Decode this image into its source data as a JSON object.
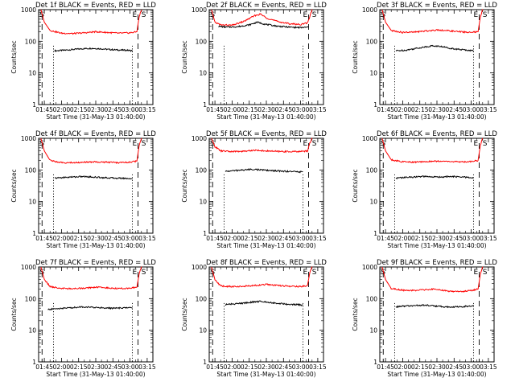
{
  "chart_data": [
    {
      "type": "line",
      "title": "Det 1f BLACK = Events, RED = LLD",
      "xlabel": "Start Time (31-May-13 01:40:00)",
      "ylabel": "Counts/sec",
      "x_ticks": [
        "01:45",
        "02:00",
        "02:15",
        "02:30",
        "02:45",
        "03:00",
        "03:15"
      ],
      "y_ticks": [
        "1",
        "10",
        "100",
        "1000"
      ],
      "yscale": "log",
      "ylim": [
        1,
        1000
      ],
      "xlim": [
        "01:40",
        "03:20"
      ],
      "series": [
        {
          "color": "#000000",
          "x": [
            "01:54",
            "02:02",
            "02:10",
            "02:18",
            "02:26",
            "02:34",
            "02:42",
            "02:50",
            "02:58",
            "03:02"
          ],
          "values": [
            50,
            52,
            55,
            58,
            60,
            58,
            55,
            53,
            52,
            50
          ]
        },
        {
          "color": "#ff0000",
          "x": [
            "01:42",
            "01:45",
            "01:50",
            "02:00",
            "02:10",
            "02:20",
            "02:30",
            "02:40",
            "02:50",
            "03:00",
            "03:06",
            "03:08",
            "03:10"
          ],
          "values": [
            1000,
            400,
            220,
            180,
            175,
            185,
            200,
            190,
            180,
            185,
            200,
            600,
            1000
          ]
        }
      ],
      "dashed_x": [
        "01:43",
        "03:07"
      ],
      "dotted_x": [
        "01:53",
        "03:02"
      ],
      "markers": [
        {
          "text": "S",
          "x": "01:41"
        },
        {
          "text": "E",
          "x": "03:02"
        },
        {
          "text": "S",
          "x": "03:10"
        }
      ]
    },
    {
      "type": "line",
      "title": "Det 2f BLACK = Events, RED = LLD",
      "xlabel": "Start Time (31-May-13 01:40:00)",
      "ylabel": "Counts/sec",
      "x_ticks": [
        "01:45",
        "02:00",
        "02:15",
        "02:30",
        "02:45",
        "03:00",
        "03:15"
      ],
      "y_ticks": [
        "1",
        "10",
        "100",
        "1000"
      ],
      "yscale": "log",
      "ylim": [
        1,
        1000
      ],
      "xlim": [
        "01:40",
        "03:20"
      ],
      "series": [
        {
          "color": "#000000",
          "x": [
            "01:48",
            "01:55",
            "02:05",
            "02:15",
            "02:22",
            "02:30",
            "02:40",
            "02:50",
            "03:00",
            "03:07"
          ],
          "values": [
            300,
            280,
            290,
            330,
            400,
            340,
            300,
            280,
            270,
            280
          ]
        },
        {
          "color": "#ff0000",
          "x": [
            "01:42",
            "01:45",
            "01:50",
            "02:00",
            "02:10",
            "02:20",
            "02:25",
            "02:30",
            "02:40",
            "02:50",
            "03:00",
            "03:06",
            "03:08",
            "03:10"
          ],
          "values": [
            1000,
            400,
            330,
            320,
            420,
            650,
            720,
            550,
            420,
            360,
            340,
            380,
            600,
            1000
          ]
        }
      ],
      "dashed_x": [
        "01:43",
        "03:07"
      ],
      "dotted_x": [
        "01:53",
        "03:02"
      ],
      "markers": [
        {
          "text": "S",
          "x": "01:41"
        },
        {
          "text": "E",
          "x": "03:02"
        },
        {
          "text": "S",
          "x": "03:10"
        }
      ]
    },
    {
      "type": "line",
      "title": "Det 3f BLACK = Events, RED = LLD",
      "xlabel": "Start Time (31-May-13 01:40:00)",
      "ylabel": "Counts/sec",
      "x_ticks": [
        "01:45",
        "02:00",
        "02:15",
        "02:30",
        "02:45",
        "03:00",
        "03:15"
      ],
      "y_ticks": [
        "1",
        "10",
        "100",
        "1000"
      ],
      "yscale": "log",
      "ylim": [
        1,
        1000
      ],
      "xlim": [
        "01:40",
        "03:20"
      ],
      "series": [
        {
          "color": "#000000",
          "x": [
            "01:54",
            "02:02",
            "02:10",
            "02:18",
            "02:26",
            "02:34",
            "02:42",
            "02:50",
            "02:58",
            "03:02"
          ],
          "values": [
            50,
            52,
            58,
            65,
            72,
            68,
            60,
            55,
            52,
            50
          ]
        },
        {
          "color": "#ff0000",
          "x": [
            "01:42",
            "01:45",
            "01:50",
            "02:00",
            "02:10",
            "02:20",
            "02:30",
            "02:40",
            "02:50",
            "03:00",
            "03:06",
            "03:08",
            "03:10"
          ],
          "values": [
            1000,
            400,
            220,
            190,
            195,
            210,
            230,
            215,
            200,
            190,
            200,
            600,
            1000
          ]
        }
      ],
      "dashed_x": [
        "01:43",
        "03:07"
      ],
      "dotted_x": [
        "01:53",
        "03:02"
      ],
      "markers": [
        {
          "text": "S",
          "x": "01:41"
        },
        {
          "text": "E",
          "x": "03:02"
        },
        {
          "text": "S",
          "x": "03:10"
        }
      ]
    },
    {
      "type": "line",
      "title": "Det 4f BLACK = Events, RED = LLD",
      "xlabel": "Start Time (31-May-13 01:40:00)",
      "ylabel": "Counts/sec",
      "x_ticks": [
        "01:45",
        "02:00",
        "02:15",
        "02:30",
        "02:45",
        "03:00",
        "03:15"
      ],
      "y_ticks": [
        "1",
        "10",
        "100",
        "1000"
      ],
      "yscale": "log",
      "ylim": [
        1,
        1000
      ],
      "xlim": [
        "01:40",
        "03:20"
      ],
      "series": [
        {
          "color": "#000000",
          "x": [
            "01:54",
            "02:02",
            "02:10",
            "02:18",
            "02:26",
            "02:34",
            "02:42",
            "02:50",
            "02:58",
            "03:02"
          ],
          "values": [
            55,
            58,
            60,
            62,
            60,
            58,
            56,
            55,
            54,
            52
          ]
        },
        {
          "color": "#ff0000",
          "x": [
            "01:42",
            "01:45",
            "01:50",
            "02:00",
            "02:10",
            "02:20",
            "02:30",
            "02:40",
            "02:50",
            "03:00",
            "03:06",
            "03:08",
            "03:10"
          ],
          "values": [
            1000,
            400,
            200,
            170,
            170,
            175,
            180,
            175,
            170,
            175,
            190,
            600,
            1000
          ]
        }
      ],
      "dashed_x": [
        "01:43",
        "03:07"
      ],
      "dotted_x": [
        "01:53",
        "03:02"
      ],
      "markers": [
        {
          "text": "S",
          "x": "01:41"
        },
        {
          "text": "E",
          "x": "03:02"
        },
        {
          "text": "S",
          "x": "03:10"
        }
      ]
    },
    {
      "type": "line",
      "title": "Det 5f BLACK = Events, RED = LLD",
      "xlabel": "Start Time (31-May-13 01:40:00)",
      "ylabel": "Counts/sec",
      "x_ticks": [
        "01:45",
        "02:00",
        "02:15",
        "02:30",
        "02:45",
        "03:00",
        "03:15"
      ],
      "y_ticks": [
        "1",
        "10",
        "100",
        "1000"
      ],
      "yscale": "log",
      "ylim": [
        1,
        1000
      ],
      "xlim": [
        "01:40",
        "03:20"
      ],
      "series": [
        {
          "color": "#000000",
          "x": [
            "01:54",
            "02:02",
            "02:10",
            "02:18",
            "02:26",
            "02:34",
            "02:42",
            "02:50",
            "02:58",
            "03:02"
          ],
          "values": [
            90,
            95,
            100,
            105,
            100,
            95,
            92,
            90,
            88,
            85
          ]
        },
        {
          "color": "#ff0000",
          "x": [
            "01:42",
            "01:45",
            "01:50",
            "02:00",
            "02:10",
            "02:20",
            "02:30",
            "02:40",
            "02:50",
            "03:00",
            "03:06",
            "03:08",
            "03:10"
          ],
          "values": [
            1000,
            550,
            400,
            380,
            390,
            420,
            400,
            385,
            380,
            385,
            400,
            700,
            1000
          ]
        }
      ],
      "dashed_x": [
        "01:43",
        "03:07"
      ],
      "dotted_x": [
        "01:53",
        "03:02"
      ],
      "markers": [
        {
          "text": "S",
          "x": "01:41"
        },
        {
          "text": "E",
          "x": "03:02"
        },
        {
          "text": "S",
          "x": "03:10"
        }
      ]
    },
    {
      "type": "line",
      "title": "Det 6f BLACK = Events, RED = LLD",
      "xlabel": "Start Time (31-May-13 01:40:00)",
      "ylabel": "Counts/sec",
      "x_ticks": [
        "01:45",
        "02:00",
        "02:15",
        "02:30",
        "02:45",
        "03:00",
        "03:15"
      ],
      "y_ticks": [
        "1",
        "10",
        "100",
        "1000"
      ],
      "yscale": "log",
      "ylim": [
        1,
        1000
      ],
      "xlim": [
        "01:40",
        "03:20"
      ],
      "series": [
        {
          "color": "#000000",
          "x": [
            "01:54",
            "02:02",
            "02:10",
            "02:18",
            "02:26",
            "02:34",
            "02:42",
            "02:50",
            "02:58",
            "03:02"
          ],
          "values": [
            55,
            58,
            60,
            62,
            60,
            60,
            62,
            60,
            58,
            55
          ]
        },
        {
          "color": "#ff0000",
          "x": [
            "01:42",
            "01:45",
            "01:50",
            "02:00",
            "02:10",
            "02:20",
            "02:30",
            "02:40",
            "02:50",
            "03:00",
            "03:06",
            "03:08",
            "03:10"
          ],
          "values": [
            1000,
            400,
            210,
            180,
            175,
            185,
            190,
            185,
            180,
            185,
            200,
            600,
            1000
          ]
        }
      ],
      "dashed_x": [
        "01:43",
        "03:07"
      ],
      "dotted_x": [
        "01:53",
        "03:02"
      ],
      "markers": [
        {
          "text": "S",
          "x": "01:41"
        },
        {
          "text": "E",
          "x": "03:02"
        },
        {
          "text": "S",
          "x": "03:10"
        }
      ]
    },
    {
      "type": "line",
      "title": "Det 7f BLACK = Events, RED = LLD",
      "xlabel": "Start Time (31-May-13 01:40:00)",
      "ylabel": "Counts/sec",
      "x_ticks": [
        "01:45",
        "02:00",
        "02:15",
        "02:30",
        "02:45",
        "03:00",
        "03:15"
      ],
      "y_ticks": [
        "1",
        "10",
        "100",
        "1000"
      ],
      "yscale": "log",
      "ylim": [
        1,
        1000
      ],
      "xlim": [
        "01:40",
        "03:20"
      ],
      "series": [
        {
          "color": "#000000",
          "x": [
            "01:48",
            "01:55",
            "02:02",
            "02:10",
            "02:18",
            "02:26",
            "02:34",
            "02:42",
            "02:50",
            "02:58",
            "03:02"
          ],
          "values": [
            45,
            48,
            50,
            52,
            55,
            53,
            52,
            50,
            50,
            52,
            50
          ]
        },
        {
          "color": "#ff0000",
          "x": [
            "01:42",
            "01:45",
            "01:50",
            "02:00",
            "02:10",
            "02:20",
            "02:30",
            "02:40",
            "02:50",
            "03:00",
            "03:06",
            "03:08",
            "03:10"
          ],
          "values": [
            1000,
            400,
            240,
            210,
            205,
            215,
            230,
            220,
            210,
            215,
            230,
            600,
            1000
          ]
        }
      ],
      "dashed_x": [
        "01:43",
        "03:07"
      ],
      "dotted_x": [
        "01:53",
        "03:02"
      ],
      "markers": [
        {
          "text": "S",
          "x": "01:41"
        },
        {
          "text": "E",
          "x": "03:02"
        },
        {
          "text": "S",
          "x": "03:10"
        }
      ]
    },
    {
      "type": "line",
      "title": "Det 8f BLACK = Events, RED = LLD",
      "xlabel": "Start Time (31-May-13 01:40:00)",
      "ylabel": "Counts/sec",
      "x_ticks": [
        "01:45",
        "02:00",
        "02:15",
        "02:30",
        "02:45",
        "03:00",
        "03:15"
      ],
      "y_ticks": [
        "1",
        "10",
        "100",
        "1000"
      ],
      "yscale": "log",
      "ylim": [
        1,
        1000
      ],
      "xlim": [
        "01:40",
        "03:20"
      ],
      "series": [
        {
          "color": "#000000",
          "x": [
            "01:54",
            "02:02",
            "02:10",
            "02:18",
            "02:26",
            "02:34",
            "02:42",
            "02:50",
            "02:58",
            "03:02"
          ],
          "values": [
            65,
            68,
            72,
            78,
            82,
            75,
            70,
            66,
            64,
            62
          ]
        },
        {
          "color": "#ff0000",
          "x": [
            "01:42",
            "01:45",
            "01:50",
            "02:00",
            "02:10",
            "02:20",
            "02:30",
            "02:40",
            "02:50",
            "03:00",
            "03:06",
            "03:08",
            "03:10"
          ],
          "values": [
            1000,
            400,
            250,
            240,
            245,
            260,
            280,
            260,
            245,
            240,
            260,
            650,
            1000
          ]
        }
      ],
      "dashed_x": [
        "01:43",
        "03:07"
      ],
      "dotted_x": [
        "01:53",
        "03:02"
      ],
      "markers": [
        {
          "text": "S",
          "x": "01:41"
        },
        {
          "text": "E",
          "x": "03:02"
        },
        {
          "text": "S",
          "x": "03:10"
        }
      ]
    },
    {
      "type": "line",
      "title": "Det 9f BLACK = Events, RED = LLD",
      "xlabel": "Start Time (31-May-13 01:40:00)",
      "ylabel": "Counts/sec",
      "x_ticks": [
        "01:45",
        "02:00",
        "02:15",
        "02:30",
        "02:45",
        "03:00",
        "03:15"
      ],
      "y_ticks": [
        "1",
        "10",
        "100",
        "1000"
      ],
      "yscale": "log",
      "ylim": [
        1,
        1000
      ],
      "xlim": [
        "01:40",
        "03:20"
      ],
      "series": [
        {
          "color": "#000000",
          "x": [
            "01:54",
            "02:02",
            "02:10",
            "02:18",
            "02:26",
            "02:34",
            "02:42",
            "02:50",
            "02:58",
            "03:02"
          ],
          "values": [
            55,
            58,
            60,
            62,
            60,
            56,
            54,
            55,
            58,
            60
          ]
        },
        {
          "color": "#ff0000",
          "x": [
            "01:42",
            "01:45",
            "01:50",
            "02:00",
            "02:10",
            "02:20",
            "02:30",
            "02:40",
            "02:50",
            "03:00",
            "03:06",
            "03:08",
            "03:10"
          ],
          "values": [
            1000,
            400,
            210,
            185,
            180,
            190,
            200,
            170,
            165,
            180,
            200,
            600,
            1000
          ]
        }
      ],
      "dashed_x": [
        "01:43",
        "03:07"
      ],
      "dotted_x": [
        "01:53",
        "03:02"
      ],
      "markers": [
        {
          "text": "S",
          "x": "01:41"
        },
        {
          "text": "E",
          "x": "03:02"
        },
        {
          "text": "S",
          "x": "03:10"
        }
      ]
    }
  ]
}
